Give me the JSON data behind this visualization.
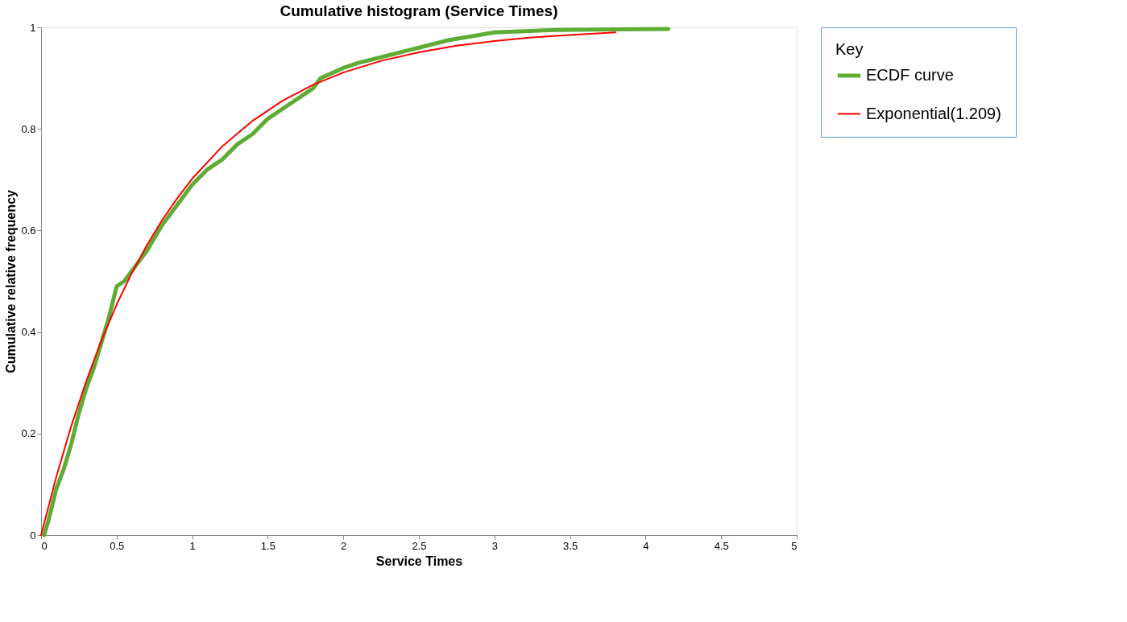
{
  "chart_data": {
    "type": "line",
    "title": "Cumulative histogram  (Service Times)",
    "xlabel": "Service  Times",
    "ylabel": "Cumulative relative frequency",
    "legend_title": "Key",
    "legend": "right",
    "grid": false,
    "xlim": [
      0,
      5
    ],
    "xticks": [
      0,
      0.5,
      1,
      1.5,
      2,
      2.5,
      3,
      3.5,
      4,
      4.5,
      5
    ],
    "ylim": [
      0,
      1
    ],
    "yticks": [
      0,
      0.2,
      0.4,
      0.6,
      0.8,
      1
    ],
    "series": [
      {
        "name": "ECDF curve",
        "color": "#5eac34",
        "x": [
          0.02,
          0.05,
          0.1,
          0.15,
          0.2,
          0.25,
          0.3,
          0.35,
          0.4,
          0.45,
          0.5,
          0.55,
          0.6,
          0.7,
          0.8,
          0.9,
          1.0,
          1.1,
          1.2,
          1.3,
          1.4,
          1.5,
          1.6,
          1.7,
          1.8,
          1.85,
          2.0,
          2.1,
          2.3,
          2.5,
          2.7,
          2.9,
          3.0,
          3.4,
          4.15
        ],
        "values": [
          0,
          0.03,
          0.09,
          0.13,
          0.18,
          0.24,
          0.29,
          0.33,
          0.38,
          0.43,
          0.49,
          0.5,
          0.52,
          0.56,
          0.61,
          0.65,
          0.69,
          0.72,
          0.74,
          0.77,
          0.79,
          0.82,
          0.84,
          0.86,
          0.88,
          0.9,
          0.92,
          0.93,
          0.945,
          0.96,
          0.975,
          0.985,
          0.99,
          0.995,
          0.997
        ]
      },
      {
        "name": "Exponential(1.209)",
        "color": "#ff0000",
        "x": [
          0,
          0.1,
          0.2,
          0.3,
          0.4,
          0.5,
          0.6,
          0.7,
          0.8,
          0.9,
          1.0,
          1.2,
          1.4,
          1.6,
          1.8,
          2.0,
          2.25,
          2.5,
          2.75,
          3.0,
          3.25,
          3.5,
          3.8
        ],
        "values": [
          0,
          0.114,
          0.215,
          0.304,
          0.384,
          0.454,
          0.516,
          0.571,
          0.62,
          0.663,
          0.702,
          0.766,
          0.816,
          0.856,
          0.887,
          0.911,
          0.934,
          0.951,
          0.964,
          0.973,
          0.98,
          0.985,
          0.99
        ]
      }
    ]
  }
}
